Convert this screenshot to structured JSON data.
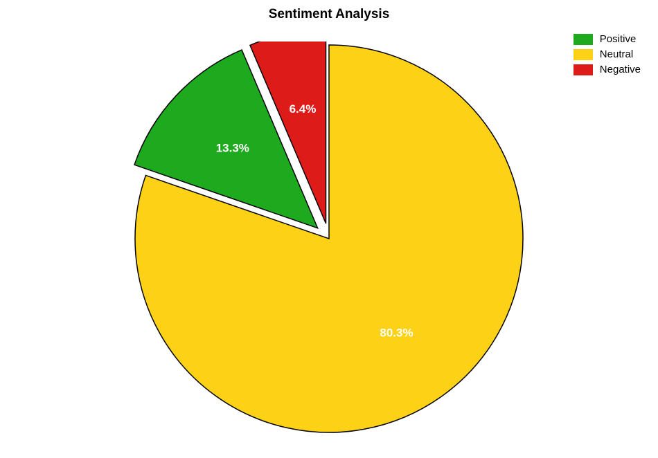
{
  "chart": {
    "type": "pie",
    "title": "Sentiment Analysis",
    "title_fontsize": 19,
    "title_fontweight": "bold",
    "title_color": "#000000",
    "background_color": "#ffffff",
    "stroke_color": "#000000",
    "stroke_width": 1.5,
    "label_fontsize": 17,
    "label_color": "#ffffff",
    "legend_fontsize": 15,
    "legend_position": "top-right",
    "start_angle_deg": -90,
    "slices": [
      {
        "name": "Neutral",
        "value": 80.3,
        "label": "80.3%",
        "color": "#fcd116",
        "explode": 0
      },
      {
        "name": "Positive",
        "value": 13.3,
        "label": "13.3%",
        "color": "#1eaa1e",
        "explode": 0.08
      },
      {
        "name": "Negative",
        "value": 6.4,
        "label": "6.4%",
        "color": "#dd1c1a",
        "explode": 0.08
      }
    ],
    "legend_items": [
      {
        "label": "Positive",
        "color": "#1eaa1e"
      },
      {
        "label": "Neutral",
        "color": "#fcd116"
      },
      {
        "label": "Negative",
        "color": "#dd1c1a"
      }
    ]
  }
}
